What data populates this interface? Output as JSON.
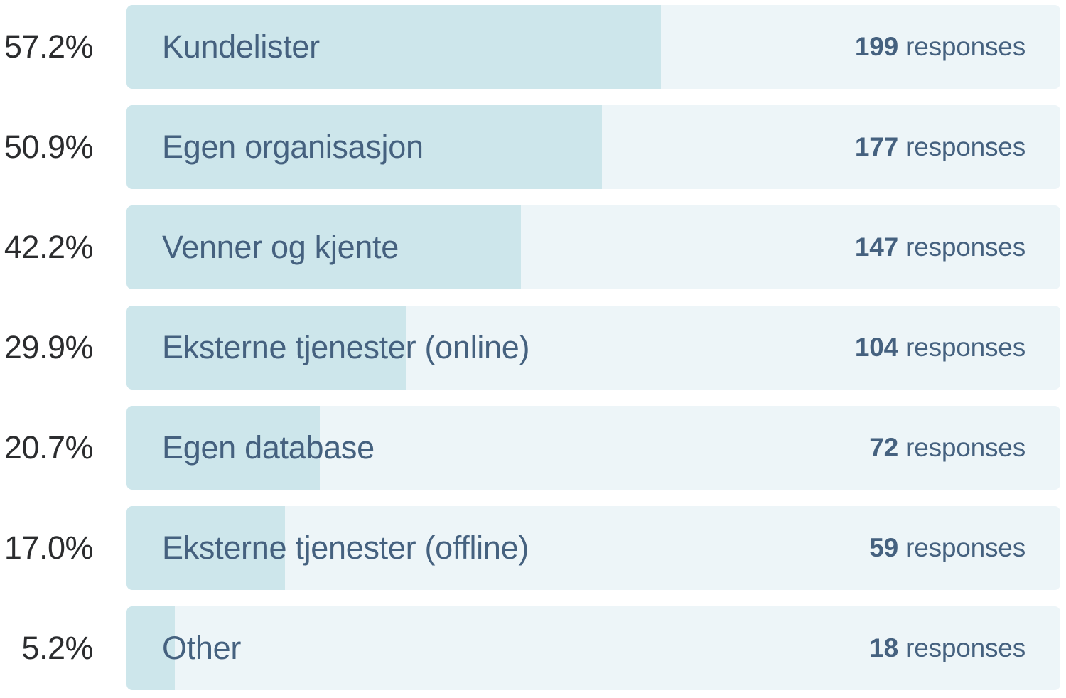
{
  "chart_data": {
    "type": "bar",
    "orientation": "horizontal",
    "categories": [
      "Kundelister",
      "Egen organisasjon",
      "Venner og kjente",
      "Eksterne tjenester (online)",
      "Egen database",
      "Eksterne tjenester (offline)",
      "Other"
    ],
    "series": [
      {
        "name": "percent",
        "unit": "%",
        "values": [
          57.2,
          50.9,
          42.2,
          29.9,
          20.7,
          17.0,
          5.2
        ]
      },
      {
        "name": "responses",
        "values": [
          199,
          177,
          147,
          104,
          72,
          59,
          18
        ]
      }
    ],
    "xlim": [
      0,
      100
    ],
    "grid": false,
    "legend": false,
    "value_labels": "percent shown left of each bar, response count shown inside right end of track",
    "colors": {
      "bar_fill": "#cde6eb",
      "track_background": "#edf5f8",
      "percent_text": "#2b2c2e",
      "label_text": "#45617f"
    }
  },
  "rows": [
    {
      "percent_label": "57.2%",
      "percent_value": 57.2,
      "label": "Kundelister",
      "count": "199",
      "responses_suffix": " responses"
    },
    {
      "percent_label": "50.9%",
      "percent_value": 50.9,
      "label": "Egen organisasjon",
      "count": "177",
      "responses_suffix": " responses"
    },
    {
      "percent_label": "42.2%",
      "percent_value": 42.2,
      "label": "Venner og kjente",
      "count": "147",
      "responses_suffix": " responses"
    },
    {
      "percent_label": "29.9%",
      "percent_value": 29.9,
      "label": "Eksterne tjenester (online)",
      "count": "104",
      "responses_suffix": " responses"
    },
    {
      "percent_label": "20.7%",
      "percent_value": 20.7,
      "label": "Egen database",
      "count": "72",
      "responses_suffix": " responses"
    },
    {
      "percent_label": "17.0%",
      "percent_value": 17.0,
      "label": "Eksterne tjenester (offline)",
      "count": "59",
      "responses_suffix": " responses"
    },
    {
      "percent_label": "5.2%",
      "percent_value": 5.2,
      "label": "Other",
      "count": "18",
      "responses_suffix": " responses"
    }
  ]
}
